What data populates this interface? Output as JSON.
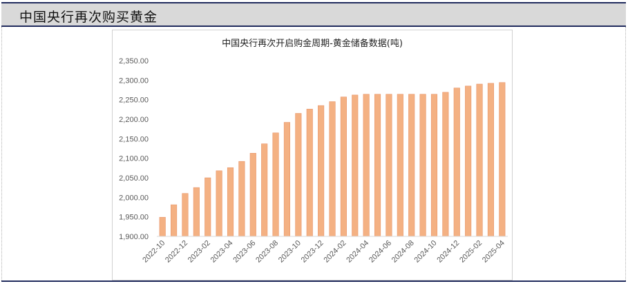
{
  "header": {
    "title": "中国央行再次购买黄金"
  },
  "colors": {
    "bar_fill": "#f4b183",
    "bar_stroke": "#e8956a",
    "header_band": "#d9d9d9",
    "rule": "#1f2a5c"
  },
  "chart_data": {
    "type": "bar",
    "title": "中国央行再次开启购金周期-黄金储备数据(吨)",
    "xlabel": "",
    "ylabel": "",
    "ylim": [
      1900,
      2350
    ],
    "yticks": [
      1900,
      1950,
      2000,
      2050,
      2100,
      2150,
      2200,
      2250,
      2300,
      2350
    ],
    "ytick_labels": [
      "1,900.00",
      "1,950.00",
      "2,000.00",
      "2,050.00",
      "2,100.00",
      "2,150.00",
      "2,200.00",
      "2,250.00",
      "2,300.00",
      "2,350.00"
    ],
    "categories": [
      "2022-10",
      "2022-11",
      "2022-12",
      "2023-01",
      "2023-02",
      "2023-03",
      "2023-04",
      "2023-05",
      "2023-06",
      "2023-07",
      "2023-08",
      "2023-09",
      "2023-10",
      "2023-11",
      "2023-12",
      "2024-01",
      "2024-02",
      "2024-03",
      "2024-04",
      "2024-05",
      "2024-06",
      "2024-07",
      "2024-08",
      "2024-09",
      "2024-10",
      "2024-11",
      "2024-12",
      "2025-01",
      "2025-02",
      "2025-03",
      "2025-04"
    ],
    "xtick_labels": [
      "2022-10",
      "2022-12",
      "2023-02",
      "2023-04",
      "2023-06",
      "2023-08",
      "2023-10",
      "2023-12",
      "2024-02",
      "2024-04",
      "2024-06",
      "2024-08",
      "2024-10",
      "2024-12",
      "2025-02",
      "2025-04"
    ],
    "values": [
      1949,
      1981,
      2010,
      2025,
      2050,
      2068,
      2076,
      2092,
      2113,
      2137,
      2165,
      2192,
      2215,
      2226,
      2235,
      2245,
      2257,
      2262,
      2264,
      2264,
      2264,
      2264,
      2264,
      2264,
      2264,
      2269,
      2280,
      2285,
      2290,
      2292,
      2294
    ],
    "grid": false,
    "legend": "none"
  }
}
